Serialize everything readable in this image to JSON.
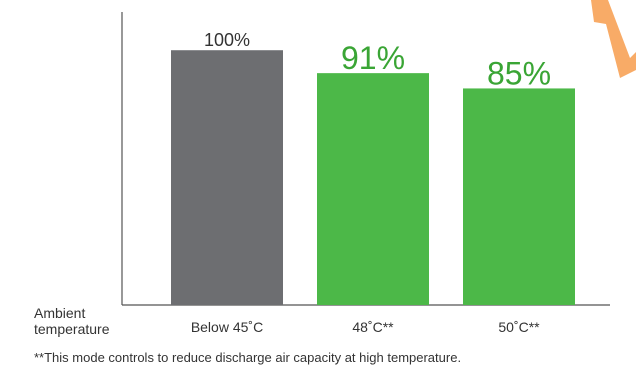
{
  "chart_data": {
    "type": "bar",
    "categories": [
      "Below 45˚C",
      "48˚C**",
      "50˚C**"
    ],
    "values": [
      100,
      91,
      85
    ],
    "value_labels": [
      "100%",
      "91%",
      "85%"
    ],
    "colors": [
      "#6d6e71",
      "#4cb848",
      "#4cb848"
    ],
    "label_colors": [
      "#333333",
      "#3aa535",
      "#3aa535"
    ],
    "xlabel": "Ambient\ntemperature",
    "ylim": [
      0,
      115
    ],
    "grid": false
  },
  "footnote": "**This mode controls to reduce discharge air capacity at high temperature.",
  "colors": {
    "axis": "#555555",
    "accent_orange": "#f7a257"
  }
}
